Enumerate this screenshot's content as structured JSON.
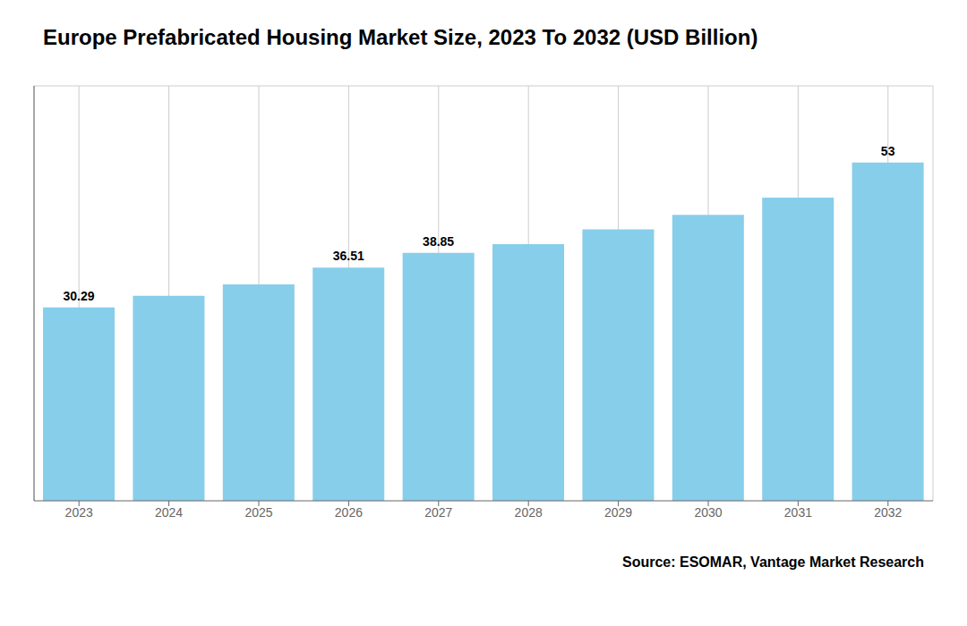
{
  "chart_data": {
    "type": "bar",
    "title": "Europe Prefabricated Housing Market Size, 2023 To 2032 (USD Billion)",
    "categories": [
      "2023",
      "2024",
      "2025",
      "2026",
      "2027",
      "2028",
      "2029",
      "2030",
      "2031",
      "2032"
    ],
    "values": [
      30.29,
      32.1,
      33.9,
      36.51,
      38.85,
      40.2,
      42.5,
      44.8,
      47.5,
      53.0
    ],
    "value_labels": [
      "30.29",
      null,
      null,
      "36.51",
      "38.85",
      null,
      null,
      null,
      null,
      "53"
    ],
    "color": "#87CEEB",
    "ylim": [
      0,
      65
    ],
    "grid": true,
    "tick_labels": "x",
    "annotations": [
      "Source: ESOMAR, Vantage Market Research"
    ]
  }
}
